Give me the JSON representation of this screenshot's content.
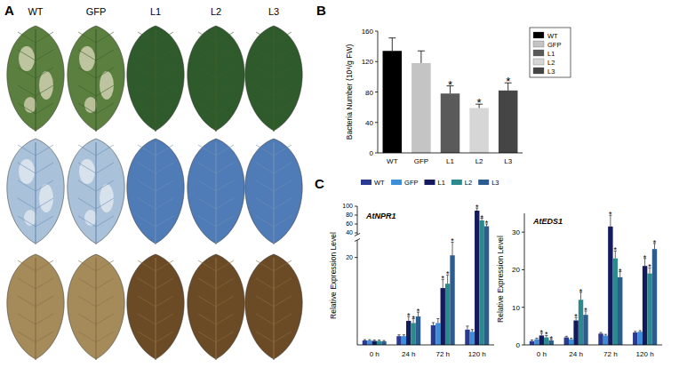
{
  "panel_letters": [
    "A",
    "B",
    "C"
  ],
  "photos": {
    "columns": [
      "WT",
      "GFP",
      "L1",
      "L2",
      "L3"
    ]
  },
  "chart_data": [
    {
      "type": "bar",
      "categories": [
        "WT",
        "GFP",
        "L1",
        "L2",
        "L3"
      ],
      "values": [
        134,
        118,
        78,
        59,
        82
      ],
      "errors": [
        17,
        16,
        10,
        5,
        10
      ],
      "significance": [
        null,
        null,
        "*",
        "*",
        "*"
      ],
      "colors": [
        "#000000",
        "#c4c4c4",
        "#5a5a5a",
        "#d6d6d6",
        "#454545"
      ],
      "y_label": "Bacteria Number (10⁸/g FW)",
      "ylim": [
        0,
        160
      ],
      "yticks": [
        0,
        40,
        80,
        120,
        160
      ],
      "legend": "right"
    },
    {
      "type": "bar",
      "title": "AtNPR1",
      "categories": [
        "0 h",
        "24 h",
        "72 h",
        "120 h"
      ],
      "y_label": "Relative Expression Level",
      "ylim": [
        0,
        100
      ],
      "ybreak": [
        24,
        36
      ],
      "yticks": [
        20,
        40,
        60,
        80,
        100
      ],
      "legend": "top",
      "series": [
        {
          "name": "WT",
          "color": "#2b3990",
          "values": [
            1,
            2,
            4.5,
            3.5
          ],
          "errors": [
            0.2,
            0.3,
            0.6,
            0.8
          ],
          "significance": [
            null,
            null,
            null,
            null
          ]
        },
        {
          "name": "GFP",
          "color": "#3d8ed8",
          "values": [
            1,
            2,
            5,
            3
          ],
          "errors": [
            0.2,
            0.3,
            1,
            0.5
          ],
          "significance": [
            null,
            null,
            null,
            null
          ]
        },
        {
          "name": "L1",
          "color": "#141a5c",
          "values": [
            0.9,
            5.5,
            13,
            90
          ],
          "errors": [
            0.2,
            1,
            2,
            6
          ],
          "significance": [
            null,
            "*",
            "*",
            "*"
          ]
        },
        {
          "name": "L2",
          "color": "#2a8a8e",
          "values": [
            0.9,
            5,
            14,
            68
          ],
          "errors": [
            0.2,
            1,
            2,
            5
          ],
          "significance": [
            null,
            "*",
            "*",
            "*"
          ]
        },
        {
          "name": "L3",
          "color": "#2d5d8f",
          "values": [
            0.8,
            6.5,
            20.5,
            55
          ],
          "errors": [
            0.2,
            1,
            3,
            5
          ],
          "significance": [
            null,
            "*",
            "*",
            "*"
          ]
        }
      ]
    },
    {
      "type": "bar",
      "title": "AtEDS1",
      "categories": [
        "0 h",
        "24 h",
        "72 h",
        "120 h"
      ],
      "y_label": "Relative Expression Level",
      "ylim": [
        0,
        35
      ],
      "yticks": [
        0,
        10,
        20,
        30
      ],
      "series": [
        {
          "name": "WT",
          "color": "#2b3990",
          "values": [
            1,
            2,
            3,
            3.3
          ],
          "errors": [
            0.3,
            0.3,
            0.3,
            0.3
          ],
          "significance": [
            null,
            null,
            null,
            null
          ]
        },
        {
          "name": "GFP",
          "color": "#3d8ed8",
          "values": [
            1.5,
            1.5,
            2.5,
            3.5
          ],
          "errors": [
            0.3,
            0.3,
            0.3,
            0.3
          ],
          "significance": [
            null,
            null,
            null,
            null
          ]
        },
        {
          "name": "L1",
          "color": "#141a5c",
          "values": [
            2.5,
            6.5,
            31.5,
            21
          ],
          "errors": [
            0.6,
            0.8,
            3,
            2
          ],
          "significance": [
            "*",
            "*",
            "*",
            "*"
          ]
        },
        {
          "name": "L2",
          "color": "#2a8a8e",
          "values": [
            2,
            12,
            23,
            19
          ],
          "errors": [
            0.5,
            2,
            2,
            1.5
          ],
          "significance": [
            "*",
            "*",
            "*",
            "*"
          ]
        },
        {
          "name": "L3",
          "color": "#2d5d8f",
          "values": [
            1.2,
            8,
            18,
            25.5
          ],
          "errors": [
            0.3,
            1,
            1.5,
            1.5
          ],
          "significance": [
            "*",
            "*",
            "*",
            "*"
          ]
        }
      ]
    }
  ]
}
